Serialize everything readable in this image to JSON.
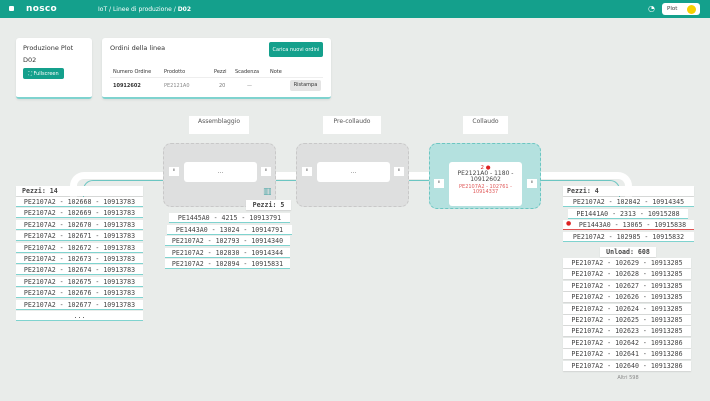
{
  "header": {
    "logo": "nosco",
    "breadcrumb": [
      "IoT",
      "Linee di produzione",
      "D02"
    ],
    "user": "Plot",
    "colors": {
      "brand": "#14a08c",
      "avatar": "#f5d000"
    }
  },
  "production": {
    "title": "Produzione Plot",
    "line": "D02",
    "fullscreen": "Fullscreen"
  },
  "orders": {
    "title": "Ordini della linea",
    "load_button": "Carica nuovi ordini",
    "columns": [
      "Numero Ordine",
      "Prodotto",
      "Pezzi",
      "Scadenza",
      "Note"
    ],
    "rows": [
      {
        "order": "10912602",
        "product": "PE2121A0",
        "pieces": "20",
        "deadline": "—",
        "action": "Ristampa"
      }
    ]
  },
  "stations": [
    {
      "name": "Assemblaggio",
      "slot": "..."
    },
    {
      "name": "Pre-collaudo",
      "slot": "..."
    },
    {
      "name": "Collaudo",
      "count": "2",
      "item": "PE2121A0 - 1180 - 10912602",
      "warning": "PE2107A2 - 102761 - 10914337"
    }
  ],
  "left_queue": {
    "header": "Pezzi: 14",
    "items": [
      "PE2107A2 - 102668 - 10913783",
      "PE2107A2 - 102669 - 10913783",
      "PE2107A2 - 102670 - 10913783",
      "PE2107A2 - 102671 - 10913783",
      "PE2107A2 - 102672 - 10913783",
      "PE2107A2 - 102673 - 10913783",
      "PE2107A2 - 102674 - 10913783",
      "PE2107A2 - 102675 - 10913783",
      "PE2107A2 - 102676 - 10913783",
      "PE2107A2 - 102677 - 10913783"
    ],
    "more": "..."
  },
  "mid_queue": {
    "header": "Pezzi: 5",
    "items": [
      "PE1445A0 - 4215 - 10913791",
      "PE1443A0 - 13024 - 10914791",
      "PE2107A2 - 102793 - 10914340",
      "PE2107A2 - 102830 - 10914344",
      "PE2107A2 - 102894 - 10915831"
    ]
  },
  "right_queue": {
    "header": "Pezzi: 4",
    "items": [
      "PE2107A2 - 102842 - 10914345",
      "PE1441A0 - 2313 - 10915288",
      "PE1443A0 - 13065 - 10915838",
      "PE2107A2 - 102985 - 10915832"
    ],
    "error_index": 2,
    "unload_header": "Unload: 608",
    "unload": [
      "PE2107A2 - 102629 - 10913285",
      "PE2107A2 - 102628 - 10913285",
      "PE2107A2 - 102627 - 10913285",
      "PE2107A2 - 102626 - 10913285",
      "PE2107A2 - 102624 - 10913285",
      "PE2107A2 - 102625 - 10913285",
      "PE2107A2 - 102623 - 10913285",
      "PE2107A2 - 102642 - 10913286",
      "PE2107A2 - 102641 - 10913286",
      "PE2107A2 - 102640 - 10913286"
    ],
    "more": "Altri 598"
  }
}
